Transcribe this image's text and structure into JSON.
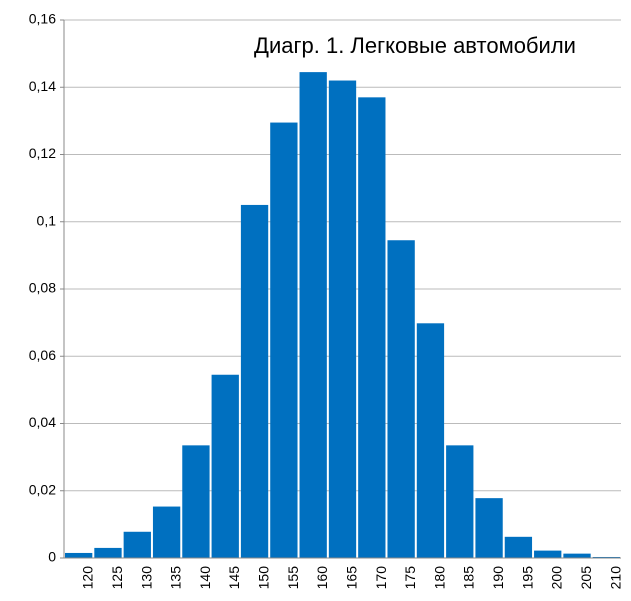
{
  "chart_data": {
    "type": "bar",
    "title": "Диагр. 1. Легковые автомобили",
    "categories": [
      "120",
      "125",
      "130",
      "135",
      "140",
      "145",
      "150",
      "155",
      "160",
      "165",
      "170",
      "175",
      "180",
      "185",
      "190",
      "195",
      "200",
      "205",
      "210"
    ],
    "values": [
      0.0015,
      0.003,
      0.0078,
      0.0153,
      0.0335,
      0.0545,
      0.105,
      0.1295,
      0.1445,
      0.142,
      0.137,
      0.0945,
      0.0698,
      0.0335,
      0.0178,
      0.0063,
      0.0022,
      0.0013,
      0.0003
    ],
    "color": "#0070c0",
    "ylim": [
      0,
      0.16
    ],
    "yticks": [
      0,
      {
        "value": 0.02,
        "label": "0,02"
      },
      {
        "value": 0.04,
        "label": "0,04"
      },
      {
        "value": 0.06,
        "label": "0,06"
      },
      {
        "value": 0.08,
        "label": "0,08"
      },
      {
        "value": 0.1,
        "label": "0,1"
      },
      {
        "value": 0.12,
        "label": "0,12"
      },
      {
        "value": 0.14,
        "label": "0,14"
      },
      {
        "value": 0.16,
        "label": "0,16"
      }
    ],
    "grid": true
  }
}
